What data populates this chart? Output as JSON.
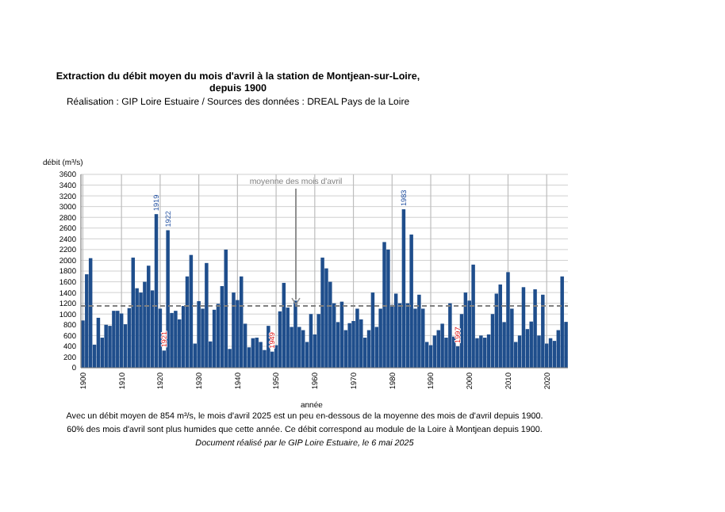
{
  "chart_data": {
    "type": "bar",
    "title": "Extraction du débit moyen du mois d'avril à la station de Montjean-sur-Loire, depuis 1900",
    "subtitle": "Réalisation : GIP Loire Estuaire / Sources des données : DREAL Pays de la Loire",
    "xlabel": "année",
    "ylabel": "débit (m³/s)",
    "x": [
      1900,
      1901,
      1902,
      1903,
      1904,
      1905,
      1906,
      1907,
      1908,
      1909,
      1910,
      1911,
      1912,
      1913,
      1914,
      1915,
      1916,
      1917,
      1918,
      1919,
      1920,
      1921,
      1922,
      1923,
      1924,
      1925,
      1926,
      1927,
      1928,
      1929,
      1930,
      1931,
      1932,
      1933,
      1934,
      1935,
      1936,
      1937,
      1938,
      1939,
      1940,
      1941,
      1942,
      1943,
      1944,
      1945,
      1946,
      1947,
      1948,
      1949,
      1950,
      1951,
      1952,
      1953,
      1954,
      1955,
      1956,
      1957,
      1958,
      1959,
      1960,
      1961,
      1962,
      1963,
      1964,
      1965,
      1966,
      1967,
      1968,
      1969,
      1970,
      1971,
      1972,
      1973,
      1974,
      1975,
      1976,
      1977,
      1978,
      1979,
      1980,
      1981,
      1982,
      1983,
      1984,
      1985,
      1986,
      1987,
      1988,
      1989,
      1990,
      1991,
      1992,
      1993,
      1994,
      1995,
      1996,
      1997,
      1998,
      1999,
      2000,
      2001,
      2002,
      2003,
      2004,
      2005,
      2006,
      2007,
      2008,
      2009,
      2010,
      2011,
      2012,
      2013,
      2014,
      2015,
      2016,
      2017,
      2018,
      2019,
      2020,
      2021,
      2022,
      2023,
      2024,
      2025
    ],
    "values": [
      880,
      1740,
      2040,
      430,
      930,
      560,
      800,
      780,
      1060,
      1060,
      1010,
      810,
      1110,
      2050,
      1480,
      1400,
      1600,
      1900,
      1440,
      2860,
      1100,
      320,
      2560,
      1020,
      1060,
      900,
      1150,
      1700,
      2100,
      450,
      1240,
      1100,
      1950,
      490,
      1080,
      1190,
      1520,
      2200,
      350,
      1400,
      1260,
      1700,
      820,
      380,
      550,
      560,
      480,
      330,
      780,
      300,
      420,
      1050,
      1580,
      1120,
      760,
      1250,
      760,
      700,
      480,
      1000,
      620,
      1000,
      2050,
      1850,
      1600,
      1200,
      850,
      1230,
      700,
      830,
      870,
      1100,
      900,
      560,
      700,
      1400,
      760,
      1100,
      2340,
      2200,
      1170,
      1380,
      1200,
      2950,
      1200,
      2480,
      1100,
      1360,
      1100,
      480,
      420,
      600,
      700,
      820,
      560,
      1200,
      580,
      400,
      1000,
      1400,
      1250,
      1920,
      550,
      600,
      560,
      620,
      1000,
      1380,
      1550,
      850,
      1780,
      1100,
      480,
      600,
      1500,
      720,
      860,
      1460,
      600,
      1360,
      450,
      550,
      500,
      700,
      1700,
      854
    ],
    "color": "#1f4e8c",
    "xlim": [
      1899.5,
      2025.5
    ],
    "xticks": [
      1900,
      1910,
      1920,
      1930,
      1940,
      1950,
      1960,
      1970,
      1980,
      1990,
      2000,
      2010,
      2020
    ],
    "ylim": [
      0,
      3600
    ],
    "yticks": [
      0,
      200,
      400,
      600,
      800,
      1000,
      1200,
      1400,
      1600,
      1800,
      2000,
      2200,
      2400,
      2600,
      2800,
      3000,
      3200,
      3400,
      3600
    ],
    "grid": true,
    "ref_lines": [
      {
        "axis": "y",
        "value": 1150,
        "label": "moyenne des mois d'avril",
        "color": "#808080",
        "line_style": "dashed"
      }
    ],
    "annotations": [
      {
        "text": "1919",
        "x": 1919,
        "y": 2860
      },
      {
        "text": "1922",
        "x": 1922,
        "y": 2560
      },
      {
        "text": "1921",
        "x": 1921,
        "y": 320
      },
      {
        "text": "1949",
        "x": 1949,
        "y": 300
      },
      {
        "text": "1983",
        "x": 1983,
        "y": 2950
      },
      {
        "text": "1997",
        "x": 1997,
        "y": 400
      },
      "Avec un débit moyen de 854 m³/s, le mois d'avril 2025 est un peu en-dessous de la moyenne des mois de d'avril depuis 1900.",
      "60% des mois d'avril sont plus humides que cette année. Ce débit correspond au module de la Loire à Montjean depuis 1900.",
      "Document réalisé par le GIP Loire Estuaire, le 6 mai 2025"
    ]
  }
}
